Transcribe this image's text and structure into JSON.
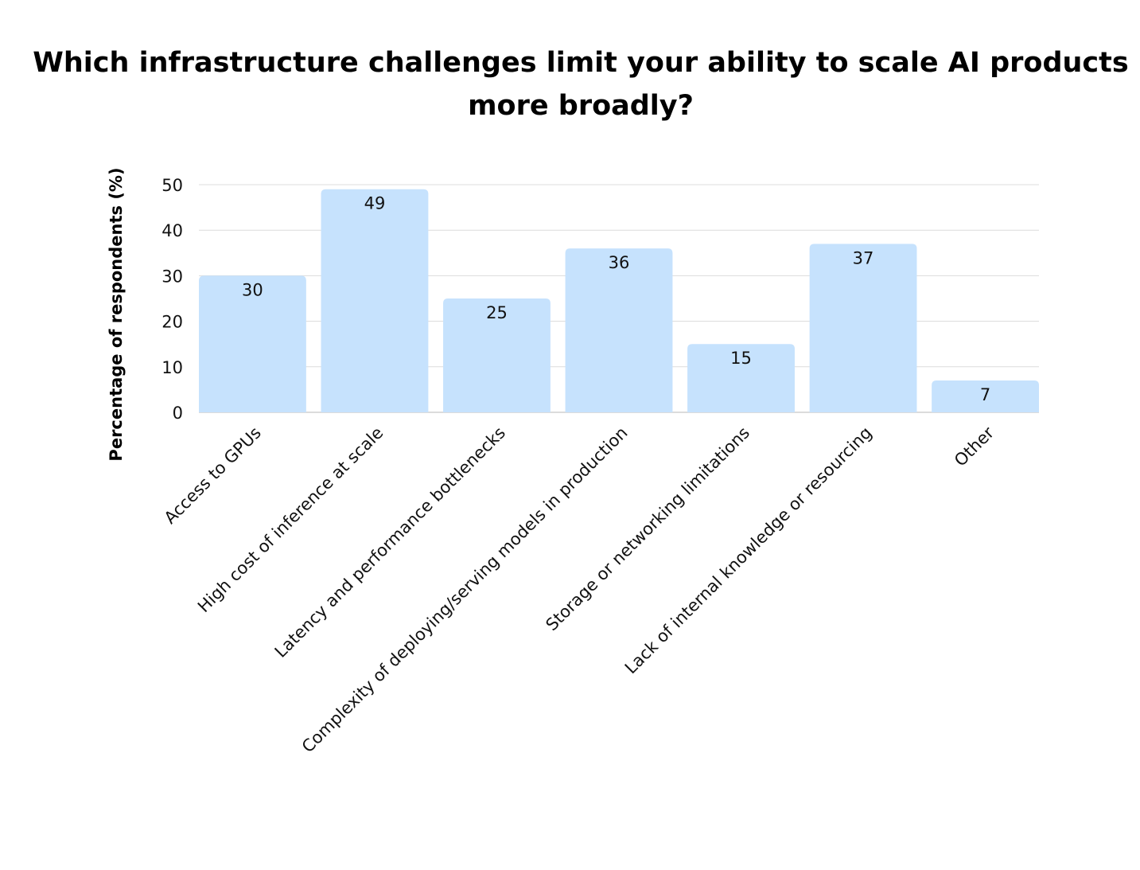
{
  "chart_data": {
    "type": "bar",
    "title": "Which infrastructure challenges limit your ability to scale AI products more broadly?",
    "xlabel": "",
    "ylabel": "Percentage of respondents (%)",
    "ylim": [
      0,
      50
    ],
    "yticks": [
      0,
      10,
      20,
      30,
      40,
      50
    ],
    "grid": true,
    "bar_color": "#c6e2fd",
    "categories": [
      "Access to GPUs",
      "High cost of inference at scale",
      "Latency and performance bottlenecks",
      "Complexity of deploying/serving models in production",
      "Storage or networking limitations",
      "Lack of internal knowledge or resourcing",
      "Other"
    ],
    "values": [
      30,
      49,
      25,
      36,
      15,
      37,
      7
    ]
  }
}
